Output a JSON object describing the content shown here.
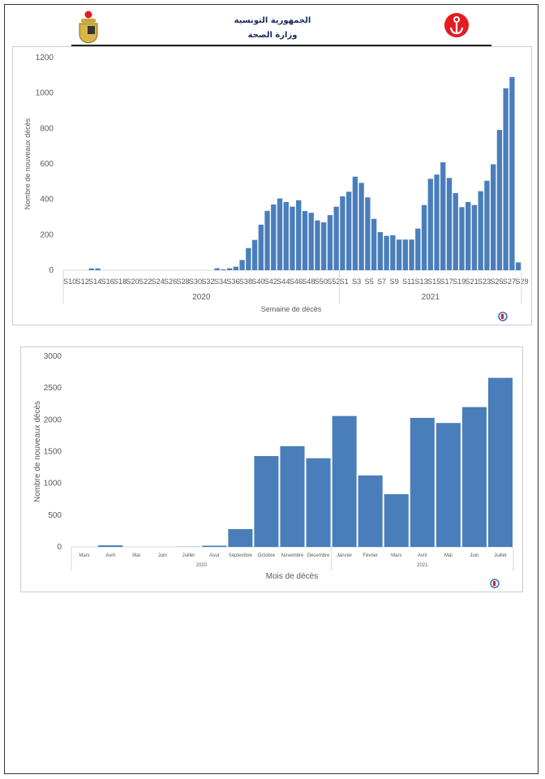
{
  "header": {
    "line1": "الجمهورية التونسية",
    "line2": "وزارة الصحة"
  },
  "colors": {
    "bar": "#4a7ebb",
    "axis": "#d9d9d9",
    "text": "#595959"
  },
  "chart_data": [
    {
      "type": "bar",
      "title": "",
      "xlabel": "Semaine de décès",
      "ylabel": "Nombre de nouveaux décès",
      "ylim": [
        0,
        1200
      ],
      "yticks": [
        0,
        200,
        400,
        600,
        800,
        1000,
        1200
      ],
      "grid": false,
      "groups": [
        {
          "year": "2020",
          "categories": [
            "S10",
            "S11",
            "S12",
            "S13",
            "S14",
            "S15",
            "S16",
            "S17",
            "S18",
            "S19",
            "S20",
            "S21",
            "S22",
            "S23",
            "S24",
            "S25",
            "S26",
            "S27",
            "S28",
            "S29",
            "S30",
            "S31",
            "S32",
            "S33",
            "S34",
            "S35",
            "S36",
            "S37",
            "S38",
            "S39",
            "S40",
            "S41",
            "S42",
            "S43",
            "S44",
            "S45",
            "S46",
            "S47",
            "S48",
            "S49",
            "S50",
            "S51",
            "S52",
            "S53"
          ],
          "tick_labels": [
            "S10",
            "",
            "S12",
            "",
            "S14",
            "",
            "S16",
            "",
            "S18",
            "",
            "S20",
            "",
            "S22",
            "",
            "S24",
            "",
            "S26",
            "",
            "S28",
            "",
            "S30",
            "",
            "S32",
            "",
            "S34",
            "",
            "S36",
            "",
            "S38",
            "",
            "S40",
            "",
            "S42",
            "",
            "S44",
            "",
            "S46",
            "",
            "S48",
            "",
            "S50",
            "",
            "S52",
            ""
          ],
          "values": [
            0,
            0,
            0,
            0,
            10,
            10,
            0,
            0,
            0,
            0,
            0,
            0,
            0,
            0,
            0,
            0,
            0,
            0,
            0,
            0,
            0,
            0,
            0,
            0,
            11,
            5,
            11,
            20,
            58,
            125,
            171,
            257,
            335,
            371,
            405,
            385,
            359,
            395,
            334,
            324,
            281,
            270,
            311,
            359
          ]
        },
        {
          "year": "2021",
          "categories": [
            "S1",
            "S2",
            "S3",
            "S4",
            "S5",
            "S6",
            "S7",
            "S8",
            "S9",
            "S10",
            "S11",
            "S12",
            "S13",
            "S14",
            "S15",
            "S16",
            "S17",
            "S18",
            "S19",
            "S20",
            "S21",
            "S22",
            "S23",
            "S24",
            "S25",
            "S26",
            "S27",
            "S28",
            "S29"
          ],
          "tick_labels": [
            "S1",
            "",
            "S3",
            "",
            "S5",
            "",
            "S7",
            "",
            "S9",
            "",
            "S11",
            "",
            "S13",
            "",
            "S15",
            "",
            "S17",
            "",
            "S19",
            "",
            "S21",
            "",
            "S23",
            "",
            "S25",
            "",
            "S27",
            "",
            "S29"
          ],
          "values": [
            417,
            443,
            528,
            493,
            411,
            290,
            215,
            194,
            197,
            173,
            173,
            173,
            235,
            368,
            516,
            540,
            609,
            521,
            435,
            356,
            385,
            368,
            446,
            505,
            598,
            792,
            1027,
            1090,
            44
          ]
        }
      ]
    },
    {
      "type": "bar",
      "title": "",
      "xlabel": "Mois de décès",
      "ylabel": "Nombre de nouveaux décès",
      "ylim": [
        0,
        3000
      ],
      "yticks": [
        0,
        500,
        1000,
        1500,
        2000,
        2500,
        3000
      ],
      "grid": false,
      "groups": [
        {
          "year": "2020",
          "categories": [
            "Mars",
            "Avril",
            "Mai",
            "Juin",
            "Juillet",
            "Aout",
            "Septembre",
            "Octobre",
            "Novembre",
            "Décembre"
          ],
          "tick_labels": [
            "Mars",
            "Avril",
            "Mai",
            "Juin",
            "Juillet",
            "Aout",
            "Septembre",
            "Octobre",
            "Novembre",
            "Décembre"
          ],
          "values": [
            0,
            25,
            0,
            0,
            3,
            20,
            280,
            1430,
            1585,
            1395
          ]
        },
        {
          "year": "2021",
          "categories": [
            "Janvier",
            "Février",
            "Mars",
            "Avril",
            "Mai",
            "Juin",
            "Juillet"
          ],
          "tick_labels": [
            "Janvier",
            "Février",
            "Mars",
            "Avril",
            "Mai",
            "Juin",
            "Juillet"
          ],
          "values": [
            2060,
            1125,
            830,
            2030,
            1950,
            2200,
            2660
          ]
        }
      ]
    }
  ]
}
